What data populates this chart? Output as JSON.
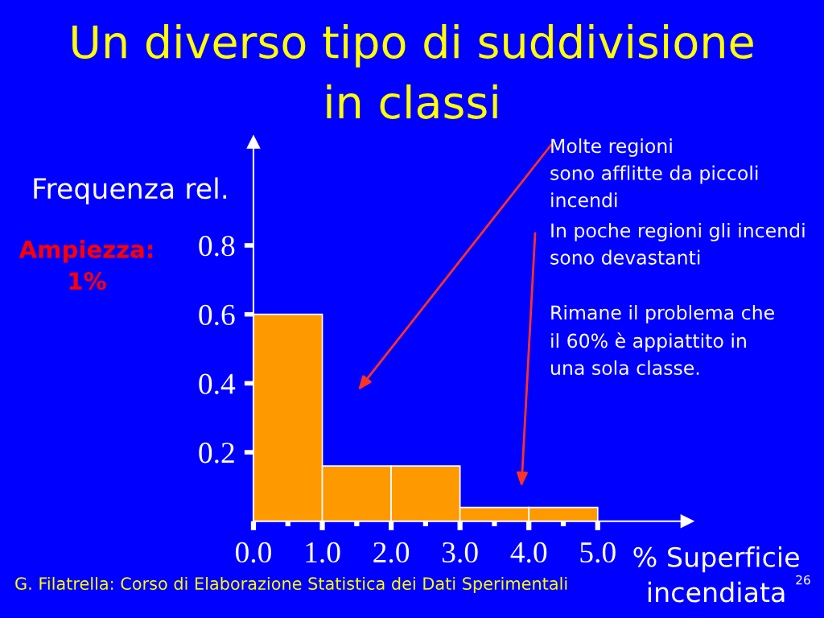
{
  "chart_data": {
    "type": "histogram",
    "title": "Un diverso tipo di suddivisione\nin classi",
    "xlabel": "% Superficie\nincendiata",
    "ylabel": "Frequenza rel.",
    "bins": [
      0,
      1,
      2,
      3,
      4,
      5
    ],
    "values": [
      0.6,
      0.16,
      0.16,
      0.04,
      0.04
    ],
    "color": "#ff9900",
    "xlim": [
      0,
      6.3
    ],
    "ylim": [
      0,
      1.1
    ],
    "xticks": [
      {
        "value": 0,
        "label": "0.0"
      },
      {
        "value": 0.5,
        "label": null
      },
      {
        "value": 1,
        "label": "1.0"
      },
      {
        "value": 1.5,
        "label": null
      },
      {
        "value": 2,
        "label": "2.0"
      },
      {
        "value": 2.5,
        "label": null
      },
      {
        "value": 3,
        "label": "3.0"
      },
      {
        "value": 3.5,
        "label": null
      },
      {
        "value": 4,
        "label": "4.0"
      },
      {
        "value": 4.5,
        "label": null
      },
      {
        "value": 5,
        "label": "5.0"
      }
    ],
    "yticks": [
      0.2,
      0.4,
      0.6,
      0.8
    ],
    "annotations": [
      "Molte regioni\nsono afflitte da piccoli\nincendi",
      "In poche regioni gli incendi\nsono devastanti",
      "Rimane il problema che\nil 60% è appiattito in\nuna sola classe.",
      "Ampiezza:\n1%",
      "G. Filatrella: Corso di Elaborazione Statistica dei Dati Sperimentali",
      "26"
    ]
  }
}
